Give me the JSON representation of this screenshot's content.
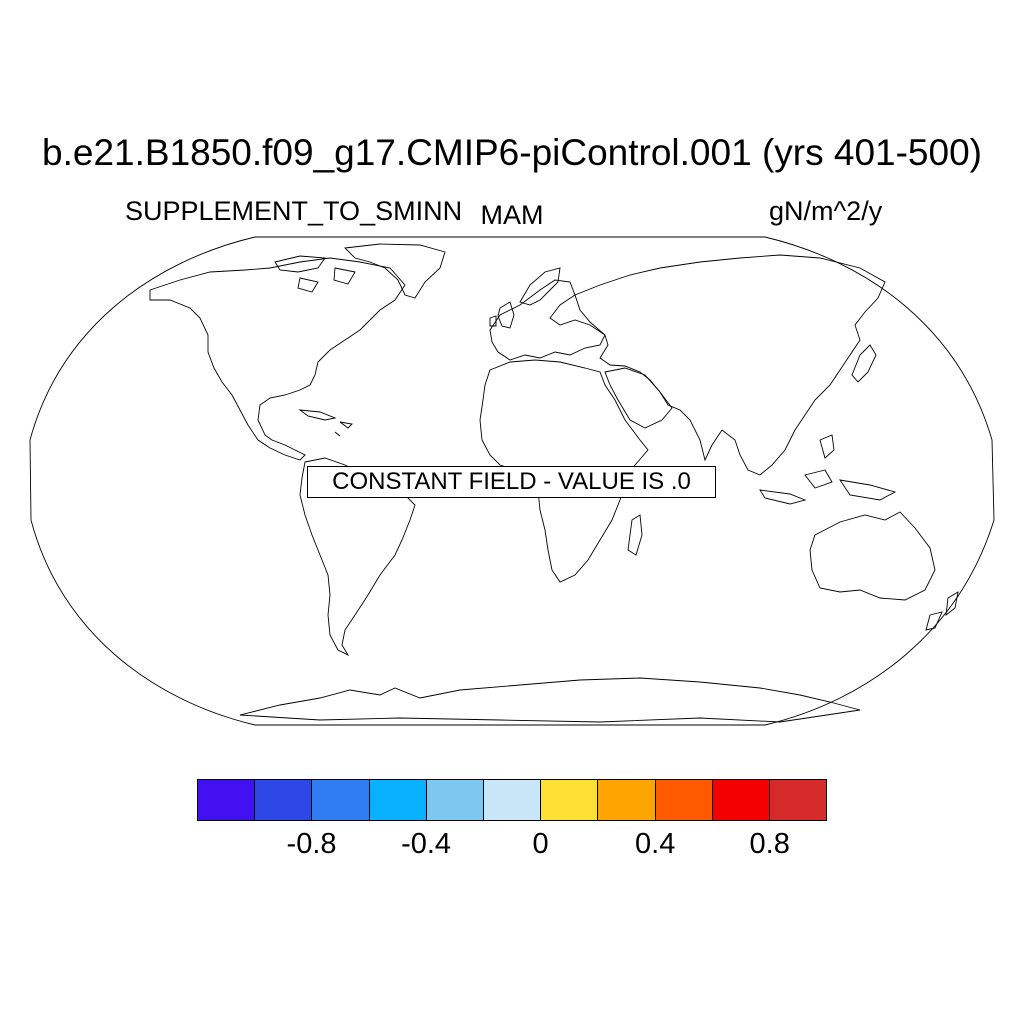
{
  "figure": {
    "title": "b.e21.B1850.f09_g17.CMIP6-piControl.001 (yrs 401-500)",
    "left_string": "SUPPLEMENT_TO_SMINN",
    "center_string": "MAM",
    "right_string": "gN/m^2/y",
    "message": "CONSTANT FIELD - VALUE IS .0"
  },
  "map": {
    "projection": "Robinson",
    "coastlines": true,
    "fill": "none"
  },
  "colorbar": {
    "colors": [
      "#4310f2",
      "#2d46e6",
      "#2f7cf2",
      "#08b0fe",
      "#7cc8f0",
      "#c8e6f8",
      "#ffe033",
      "#ffa500",
      "#ff5a00",
      "#f50000",
      "#d42a2a"
    ],
    "levels": [
      -1.0,
      -0.8,
      -0.6,
      -0.4,
      -0.2,
      0,
      0.2,
      0.4,
      0.6,
      0.8,
      1.0
    ],
    "labels": [
      {
        "text": "-0.8",
        "value": -0.8
      },
      {
        "text": "-0.4",
        "value": -0.4
      },
      {
        "text": "0",
        "value": 0
      },
      {
        "text": "0.4",
        "value": 0.4
      },
      {
        "text": "0.8",
        "value": 0.8
      }
    ]
  }
}
